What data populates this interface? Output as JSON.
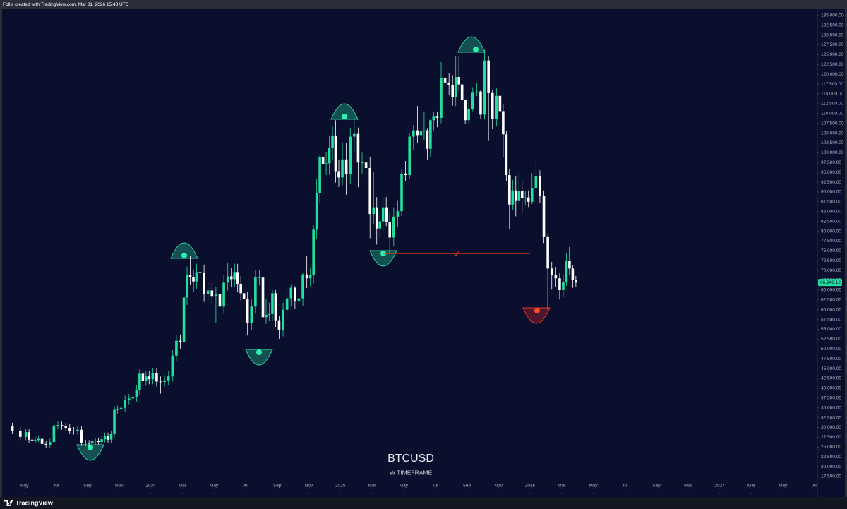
{
  "header": {
    "credit": "Follis created with TradingView.com, Mar 31, 2026 15:43 UTC"
  },
  "footer": {
    "brand": "TradingView"
  },
  "chart_data": {
    "type": "candlestick",
    "title": "BTCUSD",
    "subtitle": "W TIMEFRAME",
    "up_color": "#22e0a0",
    "down_color": "#ffffff",
    "grid": false,
    "x": [
      "2023-04",
      "2023-04",
      "2023-05",
      "2023-05",
      "2023-05",
      "2023-05",
      "2023-05",
      "2023-06",
      "2023-06",
      "2023-06",
      "2023-06",
      "2023-07",
      "2023-07",
      "2023-07",
      "2023-07",
      "2023-08",
      "2023-08",
      "2023-08",
      "2023-08",
      "2023-09",
      "2023-09",
      "2023-09",
      "2023-09",
      "2023-09",
      "2023-10",
      "2023-10",
      "2023-10",
      "2023-10",
      "2023-10",
      "2023-11",
      "2023-11",
      "2023-11",
      "2023-11",
      "2023-12",
      "2023-12",
      "2023-12",
      "2023-12",
      "2023-12",
      "2024-01",
      "2024-01",
      "2024-01",
      "2024-01",
      "2024-02",
      "2024-02",
      "2024-02",
      "2024-02",
      "2024-03",
      "2024-03",
      "2024-03",
      "2024-03",
      "2024-03",
      "2024-04",
      "2024-04",
      "2024-04",
      "2024-04",
      "2024-05",
      "2024-05",
      "2024-05",
      "2024-05",
      "2024-06",
      "2024-06",
      "2024-06",
      "2024-06",
      "2024-06",
      "2024-07",
      "2024-07",
      "2024-07",
      "2024-07",
      "2024-08",
      "2024-08",
      "2024-08",
      "2024-08",
      "2024-08",
      "2024-09",
      "2024-09",
      "2024-09",
      "2024-09",
      "2024-10",
      "2024-10",
      "2024-10",
      "2024-10",
      "2024-11",
      "2024-11",
      "2024-11",
      "2024-11",
      "2024-11",
      "2024-12",
      "2024-12",
      "2024-12",
      "2024-12",
      "2024-12",
      "2025-01",
      "2025-01",
      "2025-01",
      "2025-01",
      "2025-02",
      "2025-02",
      "2025-02",
      "2025-02",
      "2025-03",
      "2025-03",
      "2025-03",
      "2025-03",
      "2025-03",
      "2025-04",
      "2025-04",
      "2025-04",
      "2025-04",
      "2025-05",
      "2025-05",
      "2025-05",
      "2025-05",
      "2025-06",
      "2025-06",
      "2025-06",
      "2025-06",
      "2025-06",
      "2025-07",
      "2025-07",
      "2025-07",
      "2025-07",
      "2025-08",
      "2025-08",
      "2025-08",
      "2025-08",
      "2025-08",
      "2025-09",
      "2025-09",
      "2025-09",
      "2025-09",
      "2025-10",
      "2025-10",
      "2025-10",
      "2025-10",
      "2025-11",
      "2025-11",
      "2025-11",
      "2025-11",
      "2025-11",
      "2025-12",
      "2025-12",
      "2025-12",
      "2025-12",
      "2025-12",
      "2026-01",
      "2026-01",
      "2026-01",
      "2026-01",
      "2026-02",
      "2026-02",
      "2026-02",
      "2026-02",
      "2026-03",
      "2026-03",
      "2026-03",
      "2026-03",
      "2026-03"
    ],
    "open": [
      30300,
      29200,
      27600,
      28800,
      26900,
      26700,
      26800,
      27100,
      25800,
      25600,
      26300,
      30500,
      30600,
      30300,
      29900,
      29200,
      29100,
      29400,
      26100,
      26000,
      25900,
      26500,
      26600,
      26300,
      27000,
      27900,
      26900,
      28300,
      34500,
      34600,
      35000,
      37000,
      37400,
      37700,
      39500,
      43700,
      41900,
      43000,
      42300,
      43900,
      41700,
      41600,
      42000,
      43000,
      48300,
      52100,
      51700,
      63100,
      68900,
      68300,
      67200,
      69600,
      69400,
      63900,
      64900,
      63500,
      63900,
      60800,
      66900,
      68500,
      67800,
      69600,
      66600,
      64200,
      62700,
      56600,
      60800,
      68200,
      68200,
      58100,
      58700,
      58900,
      64200,
      57300,
      54800,
      60000,
      62900,
      65600,
      62100,
      62900,
      69000,
      68000,
      68800,
      80400,
      89800,
      98900,
      97200,
      97300,
      101200,
      104400,
      95300,
      93700,
      98300,
      94500,
      104100,
      104800,
      97500,
      97500,
      96100,
      84400,
      86100,
      80700,
      82500,
      86100,
      82400,
      78400,
      83700,
      85100,
      94700,
      94300,
      104100,
      105700,
      104500,
      105600,
      105700,
      101000,
      108300,
      109200,
      108900,
      119000,
      117900,
      117300,
      114200,
      119300,
      117400,
      113500,
      108300,
      111100,
      115300,
      115600,
      109700,
      123500,
      115200,
      108600,
      114500,
      110600,
      104700,
      94300,
      86800,
      90400,
      87700,
      90300,
      88400,
      88600,
      87500,
      91000,
      94000,
      89000,
      78500,
      70500,
      68800,
      68000,
      65000,
      67000,
      72500,
      70500,
      67500
    ],
    "high": [
      31200,
      30100,
      29700,
      29600,
      27700,
      27600,
      27900,
      27900,
      26600,
      27100,
      31400,
      31500,
      31500,
      31200,
      30800,
      30100,
      30300,
      30300,
      26900,
      26800,
      27300,
      27400,
      27400,
      27800,
      28700,
      28700,
      29100,
      35500,
      35600,
      36100,
      38100,
      38500,
      38800,
      40700,
      45000,
      45000,
      44300,
      44300,
      45200,
      45200,
      43000,
      43300,
      44300,
      49700,
      53700,
      53700,
      65000,
      71000,
      73800,
      70300,
      71700,
      71700,
      71500,
      66800,
      66800,
      65800,
      65800,
      68900,
      71900,
      70600,
      71700,
      71700,
      68600,
      66100,
      64600,
      62600,
      70200,
      70200,
      70200,
      62700,
      61800,
      65000,
      65000,
      58300,
      61800,
      64800,
      66500,
      66000,
      64800,
      69400,
      73600,
      70800,
      81500,
      93300,
      99600,
      99900,
      100200,
      104200,
      106800,
      108300,
      98200,
      102700,
      102500,
      106400,
      109300,
      106400,
      100000,
      99500,
      99000,
      95000,
      88700,
      85000,
      88700,
      88700,
      85000,
      86100,
      87700,
      95700,
      97900,
      104900,
      107100,
      111900,
      106800,
      110500,
      106100,
      108500,
      110500,
      110500,
      123100,
      120200,
      120200,
      119800,
      124500,
      124500,
      117700,
      113600,
      113300,
      116700,
      117900,
      116000,
      126200,
      124500,
      115900,
      116400,
      116400,
      112300,
      105500,
      95900,
      93100,
      94100,
      94600,
      92600,
      90300,
      90400,
      94800,
      97900,
      95500,
      90400,
      79400,
      72200,
      70900,
      69300,
      69000,
      74500,
      76000,
      71300,
      68600
    ],
    "low": [
      28300,
      26800,
      26800,
      26100,
      25900,
      26000,
      26300,
      25000,
      24800,
      24800,
      25500,
      29700,
      29400,
      29000,
      28300,
      28200,
      28200,
      25300,
      25200,
      25100,
      24900,
      25700,
      25500,
      25500,
      26200,
      26100,
      26100,
      27500,
      33500,
      33600,
      34000,
      35900,
      36300,
      36600,
      38300,
      40600,
      40600,
      41000,
      41000,
      40400,
      38600,
      40400,
      40700,
      41700,
      46900,
      50100,
      50100,
      61200,
      66300,
      64500,
      65200,
      67300,
      62000,
      62000,
      61600,
      56600,
      59000,
      59000,
      64900,
      65800,
      65800,
      64600,
      62300,
      60800,
      53500,
      54900,
      59000,
      66200,
      49000,
      56400,
      57100,
      57100,
      55600,
      52600,
      53200,
      58200,
      61000,
      60200,
      60200,
      61000,
      65500,
      66000,
      66700,
      78000,
      87100,
      94300,
      94300,
      94400,
      98200,
      92400,
      91300,
      91700,
      89300,
      92000,
      100000,
      91200,
      94700,
      93400,
      78200,
      81900,
      76600,
      78300,
      80000,
      81300,
      74500,
      76100,
      81200,
      83900,
      92800,
      93400,
      100700,
      102400,
      100400,
      103100,
      98200,
      98900,
      105700,
      106500,
      107500,
      115700,
      114700,
      112000,
      111900,
      115700,
      110700,
      107300,
      107300,
      110600,
      114400,
      108600,
      108600,
      103000,
      106000,
      106700,
      106300,
      98900,
      92700,
      80600,
      85300,
      83800,
      87300,
      84500,
      86700,
      86200,
      86900,
      89600,
      87300,
      77000,
      60000,
      65100,
      65700,
      62600,
      63200,
      66100,
      68800,
      65600,
      65800
    ],
    "close": [
      29200,
      27600,
      28800,
      26900,
      26700,
      26800,
      27100,
      25800,
      25600,
      26300,
      30500,
      30600,
      30300,
      29900,
      29200,
      29100,
      29400,
      26100,
      26000,
      25900,
      26500,
      26600,
      26300,
      27000,
      27900,
      26900,
      28300,
      34500,
      34600,
      35000,
      37000,
      37400,
      37700,
      39500,
      43700,
      41900,
      43000,
      42300,
      43900,
      41700,
      41600,
      42000,
      43000,
      48300,
      52100,
      51700,
      63100,
      68900,
      68300,
      67200,
      69600,
      69400,
      63900,
      64900,
      63500,
      63900,
      60800,
      66900,
      68500,
      67800,
      69600,
      66600,
      64200,
      62700,
      56600,
      60800,
      68200,
      68200,
      58100,
      58700,
      58900,
      64200,
      57300,
      54800,
      60000,
      62900,
      65600,
      62100,
      62900,
      69000,
      68000,
      68800,
      80400,
      89800,
      98900,
      97200,
      97300,
      101200,
      104400,
      95300,
      93700,
      98300,
      94500,
      104100,
      104800,
      97500,
      97500,
      96100,
      84400,
      86100,
      80700,
      82500,
      86100,
      82400,
      78400,
      83700,
      85100,
      94700,
      94300,
      104100,
      105700,
      104500,
      105600,
      105700,
      101000,
      108300,
      109200,
      108900,
      119000,
      117900,
      117300,
      114200,
      119300,
      117400,
      113500,
      108300,
      111100,
      115300,
      115600,
      109700,
      123500,
      115200,
      108600,
      114500,
      110600,
      104700,
      94300,
      86800,
      90400,
      87700,
      90300,
      88400,
      88600,
      87500,
      91000,
      94000,
      89000,
      78500,
      70500,
      68800,
      68000,
      65000,
      67000,
      72500,
      70500,
      67500,
      66900
    ],
    "last_price": {
      "value": 66946.12,
      "label": "66,946.12"
    },
    "xlim": [
      "2023-04",
      "2027-07"
    ],
    "xticks": [
      {
        "value": "2023-05",
        "label": "May"
      },
      {
        "value": "2023-07",
        "label": "Jul"
      },
      {
        "value": "2023-09",
        "label": "Sep"
      },
      {
        "value": "2023-11",
        "label": "Nov"
      },
      {
        "value": "2024-01",
        "label": "2024"
      },
      {
        "value": "2024-03",
        "label": "Mar"
      },
      {
        "value": "2024-05",
        "label": "May"
      },
      {
        "value": "2024-07",
        "label": "Jul"
      },
      {
        "value": "2024-09",
        "label": "Sep"
      },
      {
        "value": "2024-11",
        "label": "Nov"
      },
      {
        "value": "2025-01",
        "label": "2025"
      },
      {
        "value": "2025-03",
        "label": "Mar"
      },
      {
        "value": "2025-05",
        "label": "May"
      },
      {
        "value": "2025-07",
        "label": "Jul"
      },
      {
        "value": "2025-09",
        "label": "Sep"
      },
      {
        "value": "2025-11",
        "label": "Nov"
      },
      {
        "value": "2026-01",
        "label": "2026"
      },
      {
        "value": "2026-03",
        "label": "Mar"
      },
      {
        "value": "2026-05",
        "label": "May"
      },
      {
        "value": "2026-07",
        "label": "Jul"
      },
      {
        "value": "2026-09",
        "label": "Sep"
      },
      {
        "value": "2026-11",
        "label": "Nov"
      },
      {
        "value": "2027-01",
        "label": "2027"
      },
      {
        "value": "2027-03",
        "label": "Mar"
      },
      {
        "value": "2027-05",
        "label": "May"
      },
      {
        "value": "2027-07",
        "label": "Jul"
      }
    ],
    "ylim": [
      13000,
      136400
    ],
    "yticks": [
      {
        "value": 135000,
        "label": "135,000.00"
      },
      {
        "value": 132500,
        "label": "132,500.00"
      },
      {
        "value": 130000,
        "label": "130,000.00"
      },
      {
        "value": 127500,
        "label": "127,500.00"
      },
      {
        "value": 125000,
        "label": "125,000.00"
      },
      {
        "value": 122500,
        "label": "122,500.00"
      },
      {
        "value": 120000,
        "label": "120,000.00"
      },
      {
        "value": 117500,
        "label": "117,500.00"
      },
      {
        "value": 115000,
        "label": "115,000.00"
      },
      {
        "value": 112500,
        "label": "112,500.00"
      },
      {
        "value": 110000,
        "label": "110,000.00"
      },
      {
        "value": 107500,
        "label": "107,500.00"
      },
      {
        "value": 105000,
        "label": "105,000.00"
      },
      {
        "value": 102500,
        "label": "102,500.00"
      },
      {
        "value": 100000,
        "label": "100,000.00"
      },
      {
        "value": 97500,
        "label": "97,500.00"
      },
      {
        "value": 95000,
        "label": "95,000.00"
      },
      {
        "value": 92500,
        "label": "92,500.00"
      },
      {
        "value": 90000,
        "label": "90,000.00"
      },
      {
        "value": 87500,
        "label": "87,500.00"
      },
      {
        "value": 85000,
        "label": "85,000.00"
      },
      {
        "value": 82500,
        "label": "82,500.00"
      },
      {
        "value": 80000,
        "label": "80,000.00"
      },
      {
        "value": 77500,
        "label": "77,500.00"
      },
      {
        "value": 75000,
        "label": "75,000.00"
      },
      {
        "value": 72500,
        "label": "72,500.00"
      },
      {
        "value": 70000,
        "label": "70,000.00"
      },
      {
        "value": 67500,
        "label": "67,500.00"
      },
      {
        "value": 65000,
        "label": "65,000.00"
      },
      {
        "value": 62500,
        "label": "62,500.00"
      },
      {
        "value": 60000,
        "label": "60,000.00"
      },
      {
        "value": 57500,
        "label": "57,500.00"
      },
      {
        "value": 55000,
        "label": "55,000.00"
      },
      {
        "value": 52500,
        "label": "52,500.00"
      },
      {
        "value": 50000,
        "label": "50,000.00"
      },
      {
        "value": 47500,
        "label": "47,500.00"
      },
      {
        "value": 45000,
        "label": "45,000.00"
      },
      {
        "value": 42500,
        "label": "42,500.00"
      },
      {
        "value": 40000,
        "label": "40,000.00"
      },
      {
        "value": 37500,
        "label": "37,500.00"
      },
      {
        "value": 35000,
        "label": "35,000.00"
      },
      {
        "value": 32500,
        "label": "32,500.00"
      },
      {
        "value": 30000,
        "label": "30,000.00"
      },
      {
        "value": 27500,
        "label": "27,500.00"
      },
      {
        "value": 25000,
        "label": "25,000.00"
      },
      {
        "value": 22500,
        "label": "22,500.00"
      },
      {
        "value": 20000,
        "label": "20,000.00"
      },
      {
        "value": 17500,
        "label": "17,500.00"
      }
    ]
  }
}
